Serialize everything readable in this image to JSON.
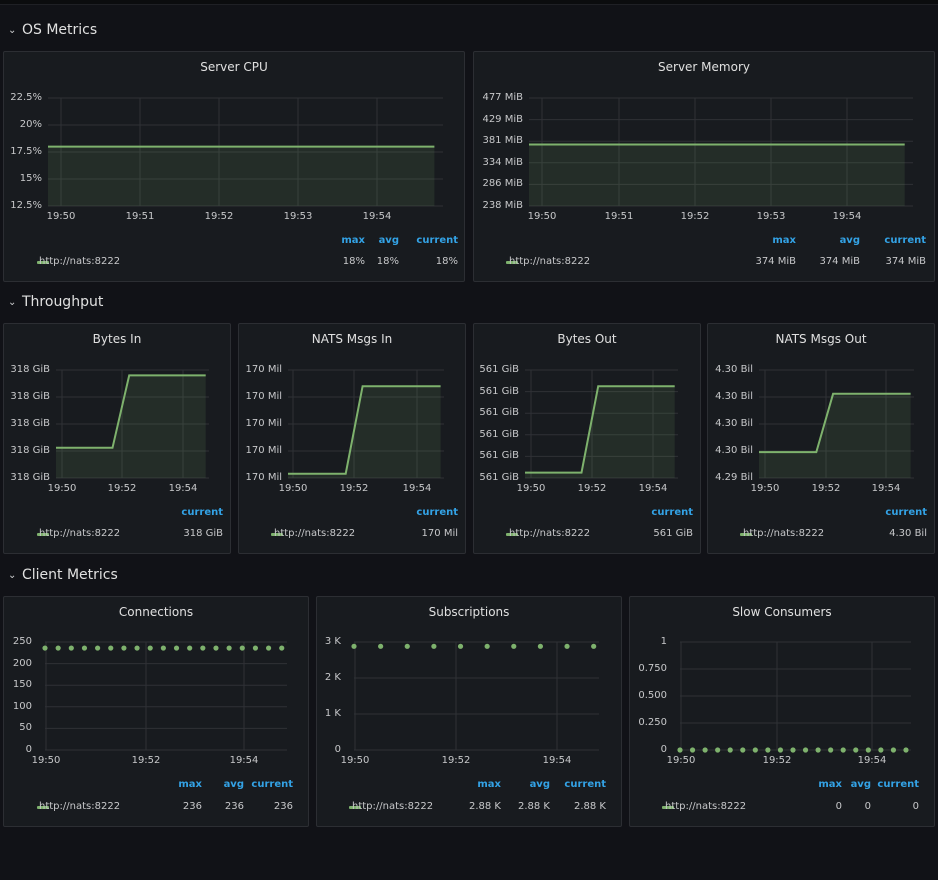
{
  "rows": [
    {
      "title": "OS Metrics"
    },
    {
      "title": "Throughput"
    },
    {
      "title": "Client Metrics"
    }
  ],
  "colors": {
    "series": "#7eb26d",
    "legend_header": "#33a2e5",
    "grid": "#2f3136",
    "panel_bg": "#181b1f"
  },
  "panels": {
    "server_cpu": {
      "title": "Server CPU",
      "legend": {
        "headers": [
          "max",
          "avg",
          "current"
        ],
        "series": "http://nats:8222",
        "values": [
          "18%",
          "18%",
          "18%"
        ]
      },
      "chart_data": {
        "type": "area",
        "x": [
          "19:50",
          "19:51",
          "19:52",
          "19:53",
          "19:54"
        ],
        "xlim": [
          19.8,
          24.4
        ],
        "series": [
          {
            "name": "http://nats:8222",
            "x": [
              19.8,
              24.3
            ],
            "y": [
              18,
              18
            ]
          }
        ],
        "ylim": [
          12.5,
          22.5
        ],
        "yticks": [
          "22.5%",
          "20%",
          "17.5%",
          "15%",
          "12.5%"
        ],
        "grid": true
      }
    },
    "server_memory": {
      "title": "Server Memory",
      "legend": {
        "headers": [
          "max",
          "avg",
          "current"
        ],
        "series": "http://nats:8222",
        "values": [
          "374 MiB",
          "374 MiB",
          "374 MiB"
        ]
      },
      "chart_data": {
        "type": "area",
        "x": [
          "19:50",
          "19:51",
          "19:52",
          "19:53",
          "19:54"
        ],
        "xlim": [
          19.8,
          24.4
        ],
        "series": [
          {
            "name": "http://nats:8222",
            "x": [
              19.8,
              24.3
            ],
            "y": [
              374,
              374
            ]
          }
        ],
        "ylim": [
          238,
          477
        ],
        "yticks": [
          "477 MiB",
          "429 MiB",
          "381 MiB",
          "334 MiB",
          "286 MiB",
          "238 MiB"
        ],
        "grid": true
      }
    },
    "bytes_in": {
      "title": "Bytes In",
      "legend": {
        "headers": [
          "current"
        ],
        "series": "http://nats:8222",
        "values": [
          "318 GiB"
        ]
      },
      "chart_data": {
        "type": "area",
        "x": [
          "19:50",
          "19:52",
          "19:54"
        ],
        "xlim": [
          19.8,
          24.4
        ],
        "series": [
          {
            "name": "http://nats:8222",
            "x": [
              19.8,
              21.5,
              22.0,
              24.3
            ],
            "y": [
              0.28,
              0.28,
              0.95,
              0.95
            ]
          }
        ],
        "ylim": [
          0,
          1
        ],
        "yticks": [
          "318 GiB",
          "318 GiB",
          "318 GiB",
          "318 GiB",
          "318 GiB"
        ],
        "grid": true
      }
    },
    "nats_msgs_in": {
      "title": "NATS Msgs In",
      "legend": {
        "headers": [
          "current"
        ],
        "series": "http://nats:8222",
        "values": [
          "170 Mil"
        ]
      },
      "chart_data": {
        "type": "area",
        "x": [
          "19:50",
          "19:52",
          "19:54"
        ],
        "xlim": [
          19.8,
          24.4
        ],
        "series": [
          {
            "name": "http://nats:8222",
            "x": [
              19.8,
              21.5,
              22.0,
              24.3
            ],
            "y": [
              0.04,
              0.04,
              0.85,
              0.85
            ]
          }
        ],
        "ylim": [
          0,
          1
        ],
        "yticks": [
          "170 Mil",
          "170 Mil",
          "170 Mil",
          "170 Mil",
          "170 Mil"
        ],
        "grid": true
      }
    },
    "bytes_out": {
      "title": "Bytes Out",
      "legend": {
        "headers": [
          "current"
        ],
        "series": "http://nats:8222",
        "values": [
          "561 GiB"
        ]
      },
      "chart_data": {
        "type": "area",
        "x": [
          "19:50",
          "19:52",
          "19:54"
        ],
        "xlim": [
          19.8,
          24.4
        ],
        "series": [
          {
            "name": "http://nats:8222",
            "x": [
              19.8,
              21.5,
              22.0,
              24.3
            ],
            "y": [
              0.05,
              0.05,
              0.85,
              0.85
            ]
          }
        ],
        "ylim": [
          0,
          1
        ],
        "yticks": [
          "561 GiB",
          "561 GiB",
          "561 GiB",
          "561 GiB",
          "561 GiB",
          "561 GiB"
        ],
        "grid": true
      }
    },
    "nats_msgs_out": {
      "title": "NATS Msgs Out",
      "legend": {
        "headers": [
          "current"
        ],
        "series": "http://nats:8222",
        "values": [
          "4.30 Bil"
        ]
      },
      "chart_data": {
        "type": "area",
        "x": [
          "19:50",
          "19:52",
          "19:54"
        ],
        "xlim": [
          19.8,
          24.4
        ],
        "series": [
          {
            "name": "http://nats:8222",
            "x": [
              19.8,
              21.5,
              22.0,
              24.3
            ],
            "y": [
              0.24,
              0.24,
              0.78,
              0.78
            ]
          }
        ],
        "ylim": [
          0,
          1
        ],
        "yticks": [
          "4.30 Bil",
          "4.30 Bil",
          "4.30 Bil",
          "4.30 Bil",
          "4.29 Bil"
        ],
        "grid": true
      }
    },
    "connections": {
      "title": "Connections",
      "legend": {
        "headers": [
          "max",
          "avg",
          "current"
        ],
        "series": "http://nats:8222",
        "values": [
          "236",
          "236",
          "236"
        ]
      },
      "chart_data": {
        "type": "scatter",
        "x": [
          "19:50",
          "19:52",
          "19:54"
        ],
        "xlim": [
          19.8,
          24.4
        ],
        "series": [
          {
            "name": "http://nats:8222",
            "x": [
              19.8,
              20.05,
              20.3,
              20.55,
              20.8,
              21.05,
              21.3,
              21.55,
              21.8,
              22.05,
              22.3,
              22.55,
              22.8,
              23.05,
              23.3,
              23.55,
              23.8,
              24.05,
              24.3
            ],
            "y": [
              236,
              236,
              236,
              236,
              236,
              236,
              236,
              236,
              236,
              236,
              236,
              236,
              236,
              236,
              236,
              236,
              236,
              236,
              236
            ]
          }
        ],
        "ylim": [
          0,
          250
        ],
        "yticks": [
          "250",
          "200",
          "150",
          "100",
          "50",
          "0"
        ],
        "grid": true
      }
    },
    "subscriptions": {
      "title": "Subscriptions",
      "legend": {
        "headers": [
          "max",
          "avg",
          "current"
        ],
        "series": "http://nats:8222",
        "values": [
          "2.88 K",
          "2.88 K",
          "2.88 K"
        ]
      },
      "chart_data": {
        "type": "scatter",
        "x": [
          "19:50",
          "19:52",
          "19:54"
        ],
        "xlim": [
          19.8,
          24.4
        ],
        "series": [
          {
            "name": "http://nats:8222",
            "x": [
              19.8,
              20.3,
              20.8,
              21.3,
              21.8,
              22.3,
              22.8,
              23.3,
              23.8,
              24.3
            ],
            "y": [
              2880,
              2880,
              2880,
              2880,
              2880,
              2880,
              2880,
              2880,
              2880,
              2880
            ]
          }
        ],
        "ylim": [
          0,
          3000
        ],
        "yticks": [
          "3 K",
          "2 K",
          "1 K",
          "0"
        ],
        "grid": true
      }
    },
    "slow_consumers": {
      "title": "Slow Consumers",
      "legend": {
        "headers": [
          "max",
          "avg",
          "current"
        ],
        "series": "http://nats:8222",
        "values": [
          "0",
          "0",
          "0"
        ]
      },
      "chart_data": {
        "type": "scatter",
        "x": [
          "19:50",
          "19:52",
          "19:54"
        ],
        "xlim": [
          19.8,
          24.4
        ],
        "series": [
          {
            "name": "http://nats:8222",
            "x": [
              19.8,
              20.05,
              20.3,
              20.55,
              20.8,
              21.05,
              21.3,
              21.55,
              21.8,
              22.05,
              22.3,
              22.55,
              22.8,
              23.05,
              23.3,
              23.55,
              23.8,
              24.05,
              24.3
            ],
            "y": [
              0,
              0,
              0,
              0,
              0,
              0,
              0,
              0,
              0,
              0,
              0,
              0,
              0,
              0,
              0,
              0,
              0,
              0,
              0
            ]
          }
        ],
        "ylim": [
          0,
          1
        ],
        "yticks": [
          "1",
          "0.750",
          "0.500",
          "0.250",
          "0"
        ],
        "grid": true
      }
    }
  }
}
